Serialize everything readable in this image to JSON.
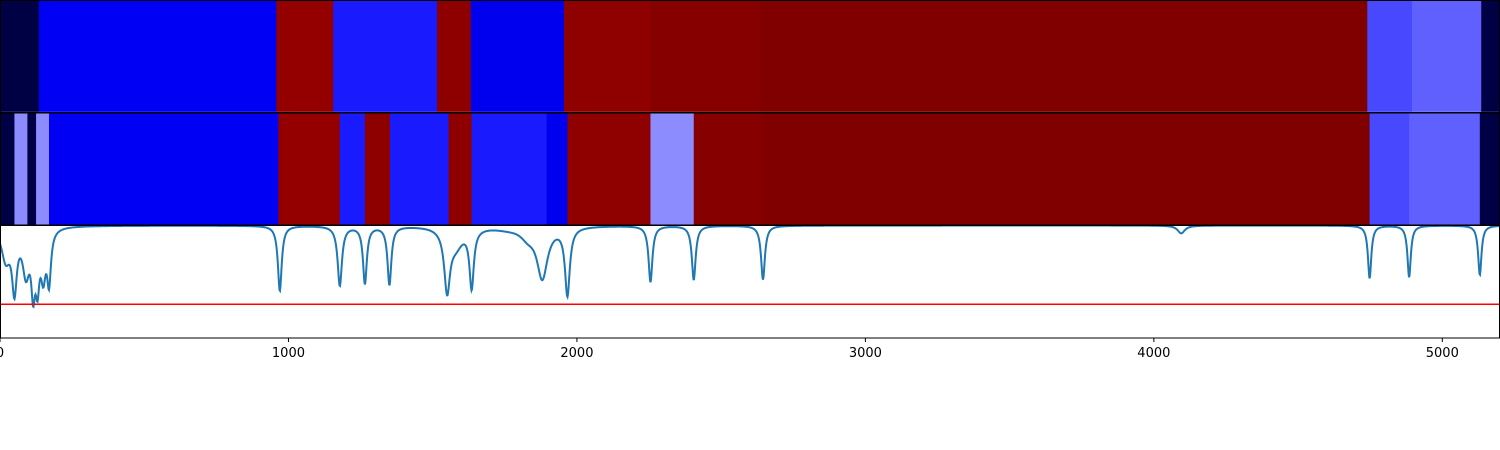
{
  "chart_data": {
    "type": "heatmap",
    "title": "",
    "xlabel": "",
    "ylabel": "",
    "xlim": [
      0,
      5200
    ],
    "x_ticks": [
      0,
      1000,
      2000,
      3000,
      4000,
      5000
    ],
    "x_tick_labels": [
      "0",
      "1000",
      "2000",
      "3000",
      "4000",
      "5000"
    ],
    "tracks": [
      {
        "segments": [
          {
            "start": 0,
            "end": 135,
            "color": "#000044"
          },
          {
            "start": 135,
            "end": 958,
            "color": "#0000f5"
          },
          {
            "start": 958,
            "end": 1155,
            "color": "#940000"
          },
          {
            "start": 1155,
            "end": 1515,
            "color": "#1a1aff"
          },
          {
            "start": 1515,
            "end": 1632,
            "color": "#8e0000"
          },
          {
            "start": 1632,
            "end": 1955,
            "color": "#0000ee"
          },
          {
            "start": 1955,
            "end": 2255,
            "color": "#8f0000"
          },
          {
            "start": 2255,
            "end": 2635,
            "color": "#860000"
          },
          {
            "start": 2635,
            "end": 4740,
            "color": "#800000"
          },
          {
            "start": 4740,
            "end": 4895,
            "color": "#4848ff"
          },
          {
            "start": 4895,
            "end": 5135,
            "color": "#6060ff"
          },
          {
            "start": 5135,
            "end": 5200,
            "color": "#000044"
          }
        ]
      },
      {
        "segments": [
          {
            "start": 0,
            "end": 50,
            "color": "#000044"
          },
          {
            "start": 50,
            "end": 95,
            "color": "#8c8cff"
          },
          {
            "start": 95,
            "end": 125,
            "color": "#000044"
          },
          {
            "start": 125,
            "end": 170,
            "color": "#8c8cff"
          },
          {
            "start": 170,
            "end": 965,
            "color": "#0000f5"
          },
          {
            "start": 965,
            "end": 1178,
            "color": "#940000"
          },
          {
            "start": 1178,
            "end": 1265,
            "color": "#1a1aff"
          },
          {
            "start": 1265,
            "end": 1352,
            "color": "#8e0000"
          },
          {
            "start": 1352,
            "end": 1555,
            "color": "#1a1aff"
          },
          {
            "start": 1555,
            "end": 1635,
            "color": "#8e0000"
          },
          {
            "start": 1635,
            "end": 1895,
            "color": "#1a1aff"
          },
          {
            "start": 1895,
            "end": 1967,
            "color": "#0000ee"
          },
          {
            "start": 1967,
            "end": 2255,
            "color": "#8f0000"
          },
          {
            "start": 2255,
            "end": 2405,
            "color": "#8c8cff"
          },
          {
            "start": 2405,
            "end": 2645,
            "color": "#860000"
          },
          {
            "start": 2645,
            "end": 4748,
            "color": "#800000"
          },
          {
            "start": 4748,
            "end": 4885,
            "color": "#4848ff"
          },
          {
            "start": 4885,
            "end": 5130,
            "color": "#6060ff"
          },
          {
            "start": 5130,
            "end": 5200,
            "color": "#000044"
          }
        ]
      }
    ],
    "signal": {
      "color": "#1f77b4",
      "ylim": [
        0,
        1
      ],
      "baseline": 1.0,
      "threshold": 0.3,
      "threshold_color": "#ff0000",
      "dips": [
        {
          "center": 20,
          "depth": 0.28,
          "width": 18
        },
        {
          "center": 50,
          "depth": 0.52,
          "width": 10
        },
        {
          "center": 90,
          "depth": 0.38,
          "width": 14
        },
        {
          "center": 115,
          "depth": 0.48,
          "width": 8
        },
        {
          "center": 130,
          "depth": 0.42,
          "width": 8
        },
        {
          "center": 150,
          "depth": 0.38,
          "width": 10
        },
        {
          "center": 170,
          "depth": 0.45,
          "width": 8
        },
        {
          "center": 970,
          "depth": 0.58,
          "width": 8
        },
        {
          "center": 1178,
          "depth": 0.53,
          "width": 9
        },
        {
          "center": 1265,
          "depth": 0.51,
          "width": 8
        },
        {
          "center": 1350,
          "depth": 0.52,
          "width": 8
        },
        {
          "center": 1550,
          "depth": 0.53,
          "width": 12
        },
        {
          "center": 1580,
          "depth": 0.16,
          "width": 30
        },
        {
          "center": 1635,
          "depth": 0.52,
          "width": 9
        },
        {
          "center": 1760,
          "depth": 0.02,
          "width": 60
        },
        {
          "center": 1830,
          "depth": 0.08,
          "width": 30
        },
        {
          "center": 1880,
          "depth": 0.45,
          "width": 22
        },
        {
          "center": 1967,
          "depth": 0.6,
          "width": 10
        },
        {
          "center": 2255,
          "depth": 0.5,
          "width": 8
        },
        {
          "center": 2405,
          "depth": 0.48,
          "width": 8
        },
        {
          "center": 2645,
          "depth": 0.48,
          "width": 8
        },
        {
          "center": 4095,
          "depth": 0.07,
          "width": 15
        },
        {
          "center": 4748,
          "depth": 0.47,
          "width": 7
        },
        {
          "center": 4885,
          "depth": 0.46,
          "width": 7
        },
        {
          "center": 5130,
          "depth": 0.44,
          "width": 7
        }
      ]
    }
  }
}
